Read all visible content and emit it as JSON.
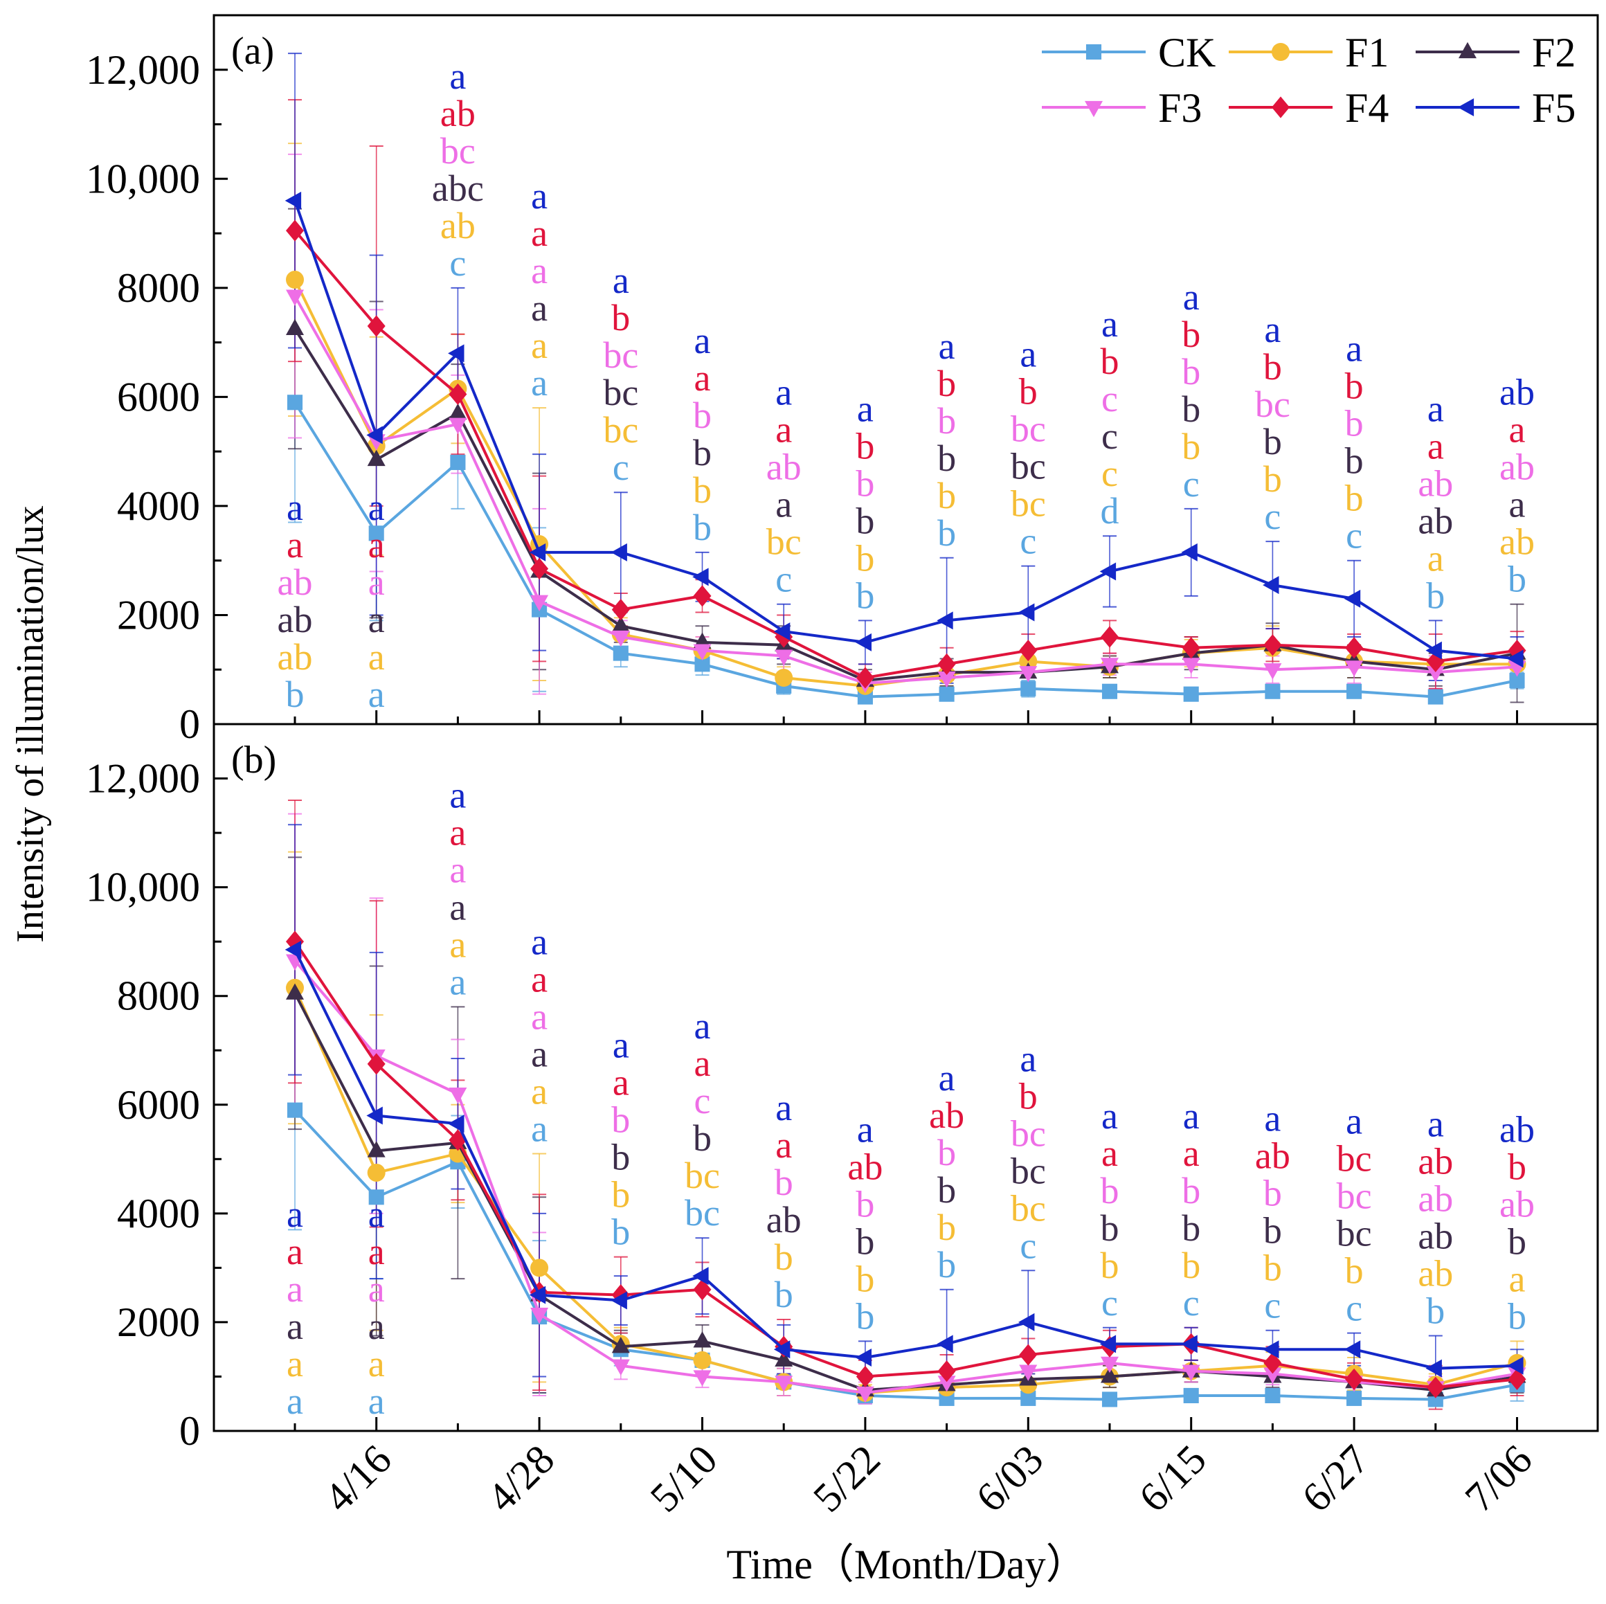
{
  "chart_data": [
    {
      "type": "line",
      "panel_label": "(a)",
      "x": [
        "4/10",
        "4/16",
        "4/22",
        "4/28",
        "5/04",
        "5/10",
        "5/16",
        "5/22",
        "5/28",
        "6/03",
        "6/09",
        "6/15",
        "6/21",
        "6/27",
        "7/03",
        "7/06"
      ],
      "xtick_labels": [
        "4/16",
        "4/28",
        "5/10",
        "5/22",
        "6/03",
        "6/15",
        "6/27",
        "7/06"
      ],
      "ylim": [
        0,
        13000
      ],
      "yticks": [
        0,
        2000,
        4000,
        6000,
        8000,
        10000,
        12000
      ],
      "ytick_labels": [
        "0",
        "2000",
        "4000",
        "6000",
        "8000",
        "10,000",
        "12,000"
      ],
      "series": [
        {
          "name": "CK",
          "color": "#5aa6e0",
          "marker": "square",
          "values": [
            5900,
            3500,
            4800,
            2100,
            1300,
            1100,
            700,
            500,
            550,
            650,
            600,
            550,
            600,
            600,
            500,
            800
          ],
          "errors": [
            2200,
            1600,
            850,
            1500,
            250,
            200,
            150,
            100,
            100,
            150,
            100,
            100,
            100,
            100,
            100,
            150
          ],
          "letters": [
            "b",
            "a",
            "c",
            "a",
            "c",
            "b",
            "c",
            "b",
            "b",
            "c",
            "d",
            "c",
            "c",
            "c",
            "b",
            "b"
          ]
        },
        {
          "name": "F1",
          "color": "#f5bd35",
          "marker": "circle",
          "values": [
            8150,
            5100,
            6150,
            3300,
            1650,
            1350,
            850,
            700,
            900,
            1150,
            1050,
            1300,
            1400,
            1150,
            1100,
            1100
          ],
          "errors": [
            2500,
            2000,
            1000,
            2500,
            300,
            250,
            200,
            150,
            200,
            250,
            200,
            250,
            400,
            300,
            200,
            300
          ],
          "letters": [
            "ab",
            "a",
            "ab",
            "a",
            "bc",
            "b",
            "bc",
            "b",
            "b",
            "bc",
            "c",
            "b",
            "b",
            "b",
            "a",
            "ab"
          ]
        },
        {
          "name": "F2",
          "color": "#3d2d4a",
          "marker": "triangle-up",
          "values": [
            7250,
            4850,
            5700,
            2800,
            1800,
            1500,
            1450,
            800,
            950,
            950,
            1050,
            1300,
            1450,
            1150,
            1000,
            1300
          ],
          "errors": [
            2200,
            2900,
            900,
            1800,
            300,
            300,
            350,
            200,
            250,
            250,
            200,
            300,
            400,
            300,
            300,
            900
          ],
          "letters": [
            "ab",
            "a",
            "abc",
            "a",
            "bc",
            "b",
            "a",
            "b",
            "b",
            "bc",
            "c",
            "b",
            "b",
            "b",
            "ab",
            "a"
          ]
        },
        {
          "name": "F3",
          "color": "#ee6ee6",
          "marker": "triangle-down",
          "values": [
            7850,
            5200,
            5500,
            2250,
            1600,
            1350,
            1250,
            750,
            850,
            950,
            1100,
            1100,
            1000,
            1050,
            950,
            1050
          ],
          "errors": [
            2600,
            2400,
            900,
            1700,
            300,
            250,
            300,
            200,
            200,
            250,
            200,
            250,
            250,
            300,
            300,
            250
          ],
          "letters": [
            "ab",
            "a",
            "bc",
            "a",
            "bc",
            "b",
            "ab",
            "b",
            "b",
            "bc",
            "c",
            "b",
            "bc",
            "b",
            "ab",
            "ab"
          ]
        },
        {
          "name": "F4",
          "color": "#e0143c",
          "marker": "diamond",
          "values": [
            9050,
            7300,
            6050,
            2850,
            2100,
            2350,
            1600,
            850,
            1100,
            1350,
            1600,
            1400,
            1450,
            1400,
            1150,
            1350
          ],
          "errors": [
            2400,
            3300,
            1100,
            1700,
            300,
            300,
            400,
            250,
            300,
            300,
            300,
            200,
            300,
            250,
            500,
            350
          ],
          "letters": [
            "a",
            "a",
            "ab",
            "a",
            "b",
            "a",
            "a",
            "b",
            "b",
            "b",
            "b",
            "b",
            "b",
            "b",
            "a",
            "a"
          ]
        },
        {
          "name": "F5",
          "color": "#1428c8",
          "marker": "triangle-left",
          "values": [
            9600,
            5300,
            6800,
            3150,
            3150,
            2700,
            1700,
            1500,
            1900,
            2050,
            2800,
            3150,
            2550,
            2300,
            1350,
            1200
          ],
          "errors": [
            2700,
            3300,
            1200,
            1800,
            1100,
            450,
            500,
            400,
            1150,
            850,
            650,
            800,
            800,
            700,
            550,
            400
          ],
          "letters": [
            "a",
            "a",
            "a",
            "a",
            "a",
            "a",
            "a",
            "a",
            "a",
            "a",
            "a",
            "a",
            "a",
            "a",
            "a",
            "ab"
          ]
        }
      ]
    },
    {
      "type": "line",
      "panel_label": "(b)",
      "x": [
        "4/10",
        "4/16",
        "4/22",
        "4/28",
        "5/04",
        "5/10",
        "5/16",
        "5/22",
        "5/28",
        "6/03",
        "6/09",
        "6/15",
        "6/21",
        "6/27",
        "7/03",
        "7/06"
      ],
      "xtick_labels": [
        "4/16",
        "4/28",
        "5/10",
        "5/22",
        "6/03",
        "6/15",
        "6/27",
        "7/06"
      ],
      "ylim": [
        0,
        13000
      ],
      "yticks": [
        0,
        2000,
        4000,
        6000,
        8000,
        10000,
        12000
      ],
      "ytick_labels": [
        "0",
        "2000",
        "4000",
        "6000",
        "8000",
        "10,000",
        "12,000"
      ],
      "series": [
        {
          "name": "CK",
          "color": "#5aa6e0",
          "marker": "square",
          "values": [
            5900,
            4300,
            4950,
            2100,
            1500,
            1300,
            900,
            650,
            600,
            600,
            580,
            650,
            650,
            600,
            580,
            850
          ],
          "errors": [
            2200,
            1500,
            850,
            1400,
            300,
            250,
            250,
            150,
            100,
            100,
            100,
            100,
            100,
            100,
            100,
            300
          ],
          "letters": [
            "a",
            "a",
            "a",
            "a",
            "b",
            "bc",
            "b",
            "b",
            "b",
            "c",
            "c",
            "c",
            "c",
            "c",
            "b",
            "b"
          ]
        },
        {
          "name": "F1",
          "color": "#f5bd35",
          "marker": "circle",
          "values": [
            8150,
            4750,
            5100,
            3000,
            1600,
            1300,
            900,
            700,
            800,
            850,
            1000,
            1100,
            1200,
            1050,
            850,
            1250
          ],
          "errors": [
            2500,
            2900,
            900,
            2100,
            300,
            250,
            250,
            150,
            200,
            200,
            200,
            200,
            250,
            300,
            200,
            400
          ],
          "letters": [
            "a",
            "a",
            "a",
            "a",
            "b",
            "bc",
            "b",
            "b",
            "b",
            "bc",
            "b",
            "b",
            "b",
            "b",
            "ab",
            "a"
          ]
        },
        {
          "name": "F2",
          "color": "#3d2d4a",
          "marker": "triangle-up",
          "values": [
            8050,
            5150,
            5300,
            2500,
            1550,
            1650,
            1300,
            750,
            850,
            950,
            1000,
            1100,
            1000,
            900,
            750,
            1000
          ],
          "errors": [
            2500,
            3400,
            2500,
            1800,
            300,
            300,
            300,
            200,
            200,
            200,
            200,
            200,
            200,
            200,
            200,
            300
          ],
          "letters": [
            "a",
            "a",
            "a",
            "a",
            "b",
            "b",
            "ab",
            "b",
            "b",
            "bc",
            "b",
            "b",
            "b",
            "bc",
            "ab",
            "b"
          ]
        },
        {
          "name": "F3",
          "color": "#ee6ee6",
          "marker": "triangle-down",
          "values": [
            8650,
            6900,
            6200,
            2150,
            1200,
            1000,
            900,
            700,
            900,
            1100,
            1250,
            1100,
            1050,
            900,
            800,
            1050
          ],
          "errors": [
            2700,
            2900,
            1000,
            1500,
            250,
            200,
            250,
            200,
            200,
            250,
            250,
            200,
            200,
            200,
            200,
            250
          ],
          "letters": [
            "a",
            "a",
            "a",
            "a",
            "b",
            "c",
            "b",
            "b",
            "b",
            "bc",
            "b",
            "b",
            "b",
            "bc",
            "ab",
            "ab"
          ]
        },
        {
          "name": "F4",
          "color": "#e0143c",
          "marker": "diamond",
          "values": [
            9000,
            6750,
            5350,
            2550,
            2500,
            2600,
            1550,
            1000,
            1100,
            1400,
            1550,
            1600,
            1250,
            950,
            800,
            950
          ],
          "errors": [
            2600,
            3000,
            1100,
            1800,
            700,
            500,
            500,
            300,
            300,
            300,
            300,
            300,
            300,
            300,
            400,
            300
          ],
          "letters": [
            "a",
            "a",
            "a",
            "a",
            "a",
            "a",
            "a",
            "ab",
            "ab",
            "b",
            "a",
            "a",
            "ab",
            "bc",
            "ab",
            "b"
          ]
        },
        {
          "name": "F5",
          "color": "#1428c8",
          "marker": "triangle-left",
          "values": [
            8850,
            5800,
            5650,
            2500,
            2400,
            2850,
            1500,
            1350,
            1600,
            2000,
            1600,
            1600,
            1500,
            1500,
            1150,
            1200
          ],
          "errors": [
            2300,
            3000,
            1200,
            1500,
            450,
            700,
            450,
            300,
            1000,
            950,
            300,
            300,
            350,
            300,
            600,
            300
          ],
          "letters": [
            "a",
            "a",
            "a",
            "a",
            "a",
            "a",
            "a",
            "a",
            "a",
            "a",
            "a",
            "a",
            "a",
            "a",
            "a",
            "ab"
          ]
        }
      ]
    }
  ],
  "ylabel": "Intensity of illumination/lux",
  "xlabel": "Time（Month/Day）",
  "legend": {
    "placement": "top-right",
    "entries": [
      "CK",
      "F1",
      "F2",
      "F3",
      "F4",
      "F5"
    ]
  }
}
